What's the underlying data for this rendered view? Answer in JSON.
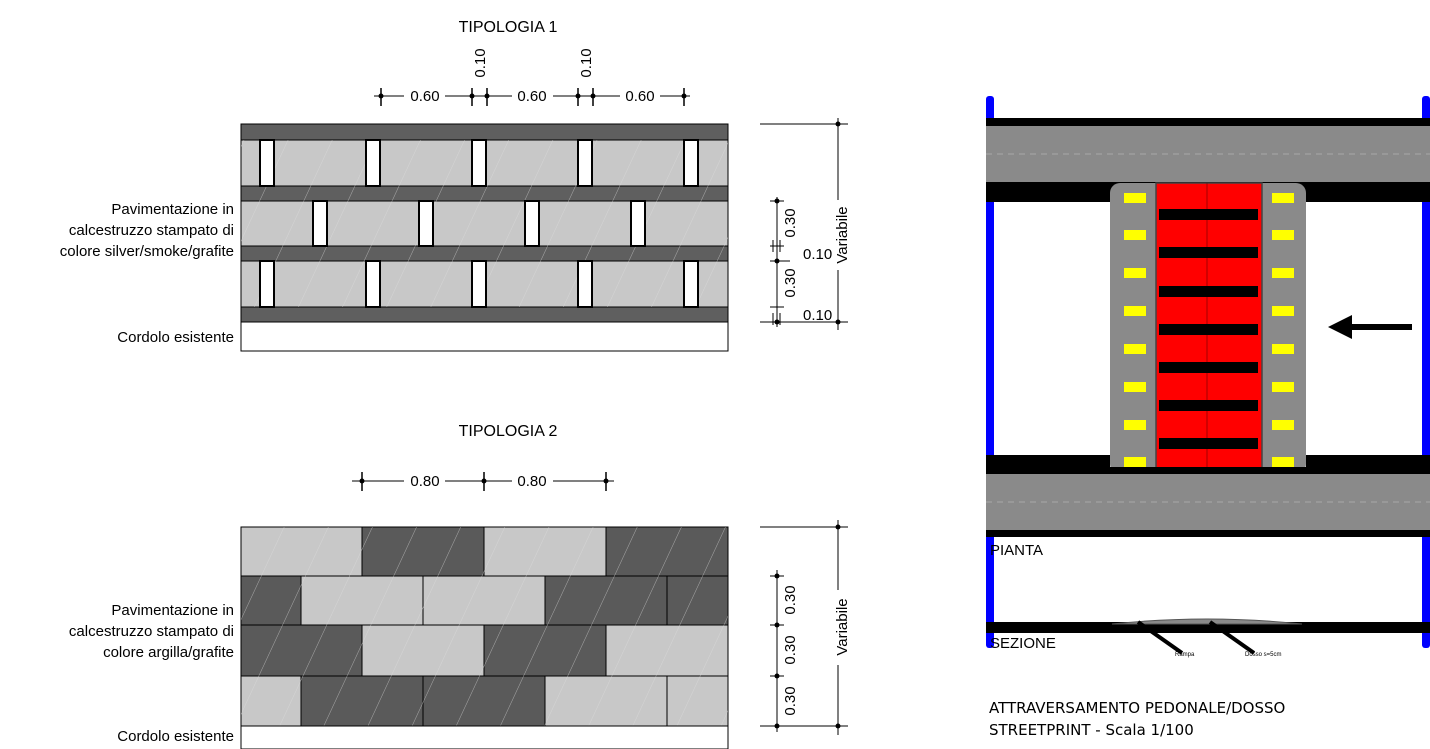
{
  "tipologia1": {
    "title": "TIPOLOGIA 1",
    "dims_top": [
      "0.60",
      "0.10",
      "0.60",
      "0.10",
      "0.60"
    ],
    "dims_right": [
      "0.30",
      "0.10",
      "0.30",
      "0.10"
    ],
    "variable": "Variabile",
    "pavement_lines": [
      "Pavimentazione in",
      "calcestruzzo stampato di",
      "colore silver/smoke/grafite"
    ],
    "curb": "Cordolo esistente"
  },
  "tipologia2": {
    "title": "TIPOLOGIA 2",
    "dims_top": [
      "0.80",
      "0.80"
    ],
    "dims_right": [
      "0.30",
      "0.30",
      "0.30"
    ],
    "variable": "Variabile",
    "pavement_lines": [
      "Pavimentazione in",
      "calcestruzzo stampato di",
      "colore argilla/grafite"
    ],
    "curb": "Cordolo esistente"
  },
  "plan": {
    "pianta": "PIANTA",
    "sezione": "SEZIONE",
    "rampa": "Rampa",
    "dosso": "Dosso s=5cm",
    "caption_line1": "ATTRAVERSAMENTO PEDONALE/DOSSO",
    "caption_line2": "STREETPRINT - Scala 1/100"
  },
  "colors": {
    "dark_band": "#5f5f5f",
    "light_brick": "#c8c8c8",
    "dark_brick": "#5a5a5a",
    "asphalt": "#8a8a8a",
    "red": "#ff0000",
    "yellow": "#ffff00",
    "blue": "#0000ff"
  }
}
